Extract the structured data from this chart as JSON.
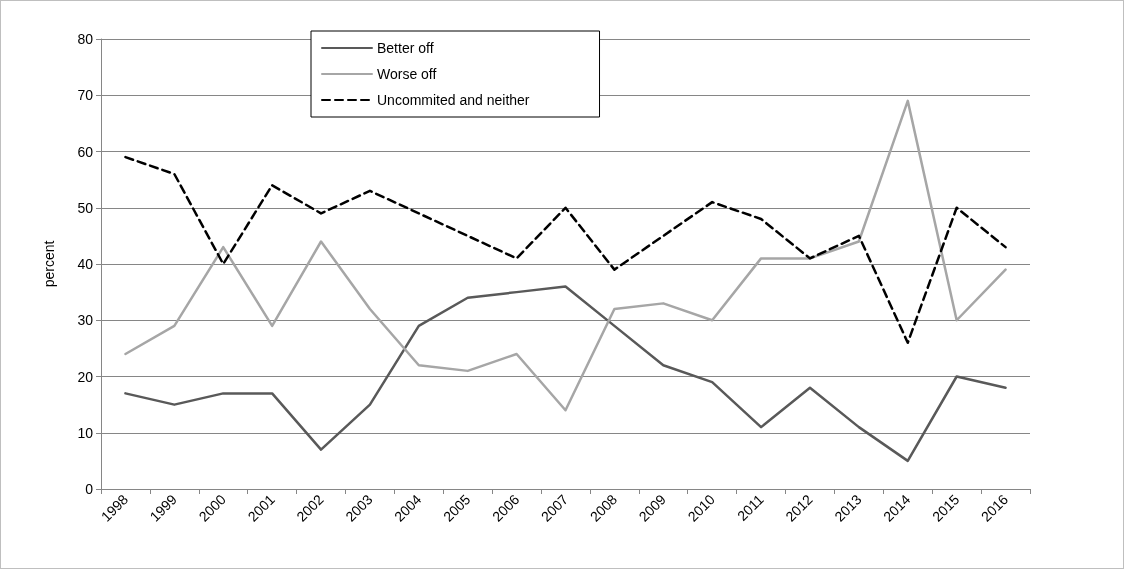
{
  "chart_data": {
    "type": "line",
    "ylabel": "percent",
    "categories": [
      "1998",
      "1999",
      "2000",
      "2001",
      "2002",
      "2003",
      "2004",
      "2005",
      "2006",
      "2007",
      "2008",
      "2009",
      "2010",
      "2011",
      "2012",
      "2013",
      "2014",
      "2015",
      "2016"
    ],
    "series": [
      {
        "name": "Better off",
        "color": "#595959",
        "values": [
          17,
          15,
          17,
          17,
          7,
          15,
          29,
          34,
          35,
          36,
          29,
          22,
          19,
          11,
          18,
          11,
          5,
          20,
          18
        ]
      },
      {
        "name": "Worse off",
        "color": "#a6a6a6",
        "values": [
          24,
          29,
          43,
          29,
          44,
          32,
          22,
          21,
          24,
          14,
          32,
          33,
          30,
          41,
          41,
          44,
          69,
          30,
          39
        ]
      },
      {
        "name": "Uncommited and neither",
        "color": "#000000",
        "line_style": "dashed",
        "values": [
          59,
          56,
          40,
          54,
          49,
          53,
          49,
          45,
          41,
          50,
          39,
          45,
          51,
          48,
          41,
          45,
          26,
          50,
          43
        ]
      }
    ],
    "ylim": [
      0,
      80
    ],
    "yticks": [
      0,
      10,
      20,
      30,
      40,
      50,
      60,
      70,
      80
    ],
    "grid": "y",
    "legend": "top",
    "marker": "none"
  }
}
